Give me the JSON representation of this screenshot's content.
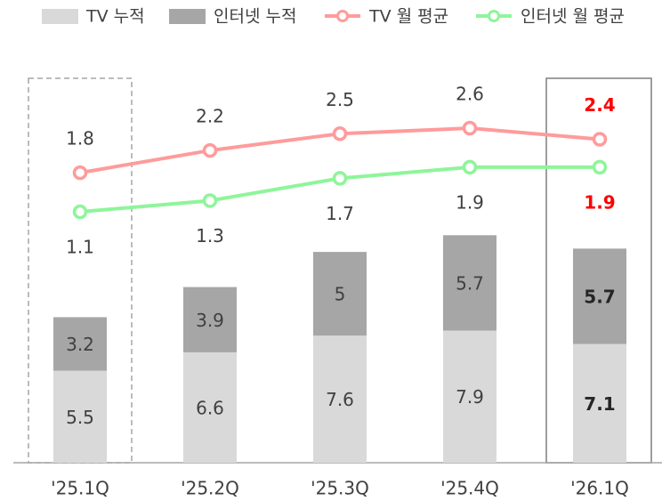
{
  "chart_data": {
    "type": "bar",
    "categories": [
      "'25.1Q",
      "'25.2Q",
      "'25.3Q",
      "'25.4Q",
      "'26.1Q"
    ],
    "ylim": [
      0,
      25
    ],
    "y2lim": [
      -3.4,
      4.1
    ],
    "series": [
      {
        "name": "TV 누적",
        "type": "bar",
        "color": "#d9d9d9",
        "values": [
          5.5,
          6.6,
          7.6,
          7.9,
          7.1
        ]
      },
      {
        "name": "인터넷 누적",
        "type": "bar",
        "color": "#a6a6a6",
        "values": [
          3.2,
          3.9,
          5.0,
          5.7,
          5.7
        ]
      },
      {
        "name": "TV 월 평균",
        "type": "line",
        "axis": "y2",
        "color": "#ff9b9b",
        "values": [
          1.8,
          2.2,
          2.5,
          2.6,
          2.4
        ]
      },
      {
        "name": "인터넷 월 평균",
        "type": "line",
        "axis": "y2",
        "color": "#8ef59a",
        "values": [
          1.1,
          1.3,
          1.7,
          1.9,
          1.9
        ]
      }
    ]
  }
}
